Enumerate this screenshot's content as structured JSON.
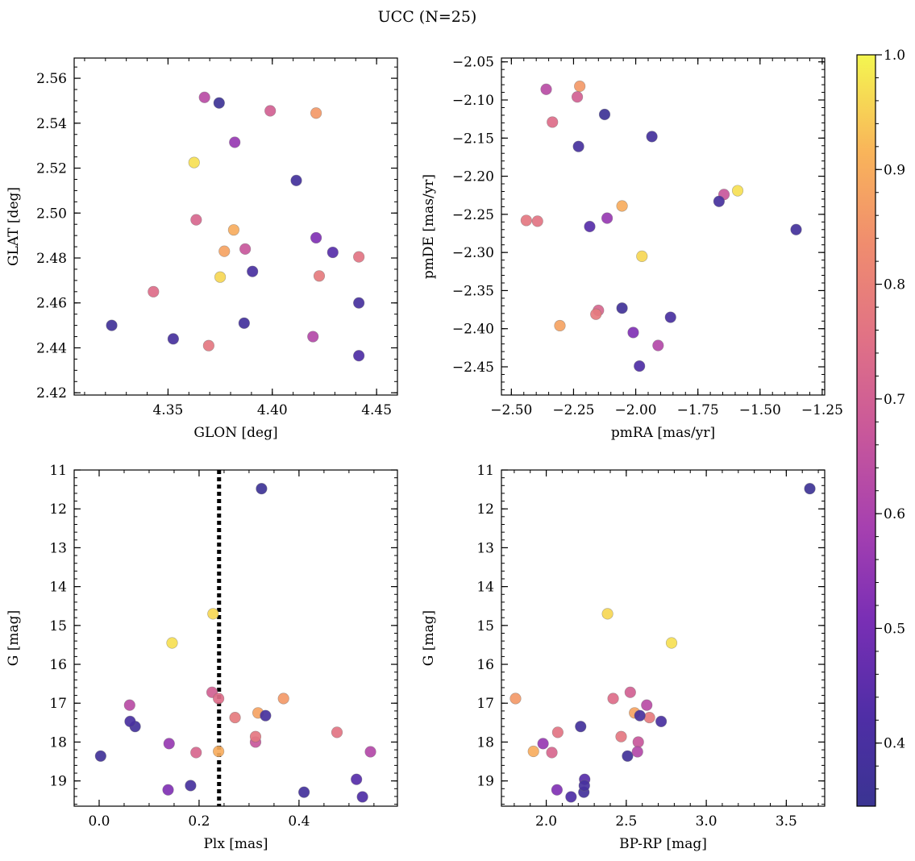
{
  "chart_data": {
    "type": "scatter",
    "title": "UCC (N=25)",
    "colormap": "plasma",
    "colorbar": {
      "range": [
        0.345,
        1.0
      ],
      "ticks": [
        0.4,
        0.5,
        0.6,
        0.7,
        0.8,
        0.9,
        1.0
      ],
      "tick_labels": [
        "0.4",
        "0.5",
        "0.6",
        "0.7",
        "0.8",
        "0.9",
        "1.0"
      ]
    },
    "stars": [
      {
        "glon": 4.3675,
        "glat": 2.5515,
        "pmra": -2.36,
        "pmde": -2.086,
        "plx": 0.061,
        "g": 17.05,
        "bprp": 2.628,
        "prob": 0.63
      },
      {
        "glon": 4.3745,
        "glat": 2.549,
        "pmra": -2.125,
        "pmde": -2.119,
        "plx": 0.325,
        "g": 11.48,
        "bprp": 3.647,
        "prob": 0.36
      },
      {
        "glon": 4.399,
        "glat": 2.5455,
        "pmra": -2.235,
        "pmde": -2.096,
        "plx": 0.226,
        "g": 16.72,
        "bprp": 2.525,
        "prob": 0.7
      },
      {
        "glon": 4.421,
        "glat": 2.5445,
        "pmra": -2.225,
        "pmde": -2.082,
        "plx": 0.369,
        "g": 16.88,
        "bprp": 1.808,
        "prob": 0.86
      },
      {
        "glon": 4.382,
        "glat": 2.5315,
        "pmra": -2.115,
        "pmde": -2.255,
        "plx": 0.14,
        "g": 18.04,
        "bprp": 1.98,
        "prob": 0.56
      },
      {
        "glon": 4.3625,
        "glat": 2.5225,
        "pmra": -1.59,
        "pmde": -2.219,
        "plx": 0.146,
        "g": 15.45,
        "bprp": 2.783,
        "prob": 0.97
      },
      {
        "glon": 4.4115,
        "glat": 2.5145,
        "pmra": -1.935,
        "pmde": -2.148,
        "plx": 0.072,
        "g": 17.6,
        "bprp": 2.215,
        "prob": 0.38
      },
      {
        "glon": 4.3635,
        "glat": 2.497,
        "pmra": -2.15,
        "pmde": -2.376,
        "plx": 0.194,
        "g": 18.27,
        "bprp": 2.035,
        "prob": 0.72
      },
      {
        "glon": 4.3815,
        "glat": 2.4925,
        "pmra": -2.055,
        "pmde": -2.239,
        "plx": 0.239,
        "g": 18.24,
        "bprp": 1.92,
        "prob": 0.9
      },
      {
        "glon": 4.421,
        "glat": 2.489,
        "pmra": -2.01,
        "pmde": -2.405,
        "plx": 0.138,
        "g": 19.23,
        "bprp": 2.067,
        "prob": 0.52
      },
      {
        "glon": 4.377,
        "glat": 2.483,
        "pmra": -2.305,
        "pmde": -2.396,
        "plx": 0.318,
        "g": 17.25,
        "bprp": 2.552,
        "prob": 0.88
      },
      {
        "glon": 4.387,
        "glat": 2.484,
        "pmra": -1.645,
        "pmde": -2.224,
        "plx": 0.313,
        "g": 18.0,
        "bprp": 2.575,
        "prob": 0.67
      },
      {
        "glon": 4.429,
        "glat": 2.4825,
        "pmra": -2.185,
        "pmde": -2.266,
        "plx": 0.515,
        "g": 18.96,
        "bprp": 2.24,
        "prob": 0.44
      },
      {
        "glon": 4.4415,
        "glat": 2.4805,
        "pmra": -2.395,
        "pmde": -2.259,
        "plx": 0.476,
        "g": 17.75,
        "bprp": 2.072,
        "prob": 0.76
      },
      {
        "glon": 4.4225,
        "glat": 2.472,
        "pmra": -2.16,
        "pmde": -2.381,
        "plx": 0.272,
        "g": 17.37,
        "bprp": 2.645,
        "prob": 0.78
      },
      {
        "glon": 4.375,
        "glat": 2.4715,
        "pmra": -1.975,
        "pmde": -2.305,
        "plx": 0.228,
        "g": 14.7,
        "bprp": 2.383,
        "prob": 0.96
      },
      {
        "glon": 4.3905,
        "glat": 2.474,
        "pmra": -1.86,
        "pmde": -2.385,
        "plx": 0.062,
        "g": 17.47,
        "bprp": 2.718,
        "prob": 0.4
      },
      {
        "glon": 4.343,
        "glat": 2.465,
        "pmra": -2.335,
        "pmde": -2.129,
        "plx": 0.239,
        "g": 16.88,
        "bprp": 2.418,
        "prob": 0.74
      },
      {
        "glon": 4.4415,
        "glat": 2.46,
        "pmra": -1.665,
        "pmde": -2.233,
        "plx": 0.333,
        "g": 17.32,
        "bprp": 2.585,
        "prob": 0.39
      },
      {
        "glon": 4.323,
        "glat": 2.45,
        "pmra": -2.055,
        "pmde": -2.373,
        "plx": 0.003,
        "g": 18.36,
        "bprp": 2.508,
        "prob": 0.37
      },
      {
        "glon": 4.3865,
        "glat": 2.451,
        "pmra": -1.355,
        "pmde": -2.27,
        "plx": 0.41,
        "g": 19.29,
        "bprp": 2.235,
        "prob": 0.38
      },
      {
        "glon": 4.4195,
        "glat": 2.445,
        "pmra": -1.91,
        "pmde": -2.422,
        "plx": 0.543,
        "g": 18.25,
        "bprp": 2.57,
        "prob": 0.62
      },
      {
        "glon": 4.3525,
        "glat": 2.444,
        "pmra": -2.23,
        "pmde": -2.161,
        "plx": 0.183,
        "g": 19.12,
        "bprp": 2.238,
        "prob": 0.39
      },
      {
        "glon": 4.3695,
        "glat": 2.441,
        "pmra": -2.44,
        "pmde": -2.258,
        "plx": 0.313,
        "g": 17.86,
        "bprp": 2.468,
        "prob": 0.77
      },
      {
        "glon": 4.4415,
        "glat": 2.4365,
        "pmra": -1.985,
        "pmde": -2.449,
        "plx": 0.527,
        "g": 19.41,
        "bprp": 2.155,
        "prob": 0.42
      }
    ],
    "panels": [
      {
        "id": "glon-glat",
        "x": "glon",
        "y": "glat",
        "xlabel": "GLON [deg]",
        "ylabel": "GLAT [deg]",
        "xlim": [
          4.305,
          4.46
        ],
        "ylim": [
          2.419,
          2.569
        ],
        "yinvert": false,
        "xticks": [
          4.35,
          4.4,
          4.45
        ],
        "xtick_labels": [
          "4.35",
          "4.40",
          "4.45"
        ],
        "yticks": [
          2.42,
          2.44,
          2.46,
          2.48,
          2.5,
          2.52,
          2.54,
          2.56
        ],
        "ytick_labels": [
          "2.42",
          "2.44",
          "2.46",
          "2.48",
          "2.50",
          "2.52",
          "2.54",
          "2.56"
        ]
      },
      {
        "id": "pmra-pmde",
        "x": "pmra",
        "y": "pmde",
        "xlabel": "pmRA [mas/yr]",
        "ylabel": "pmDE [mas/yr]",
        "xlim": [
          -2.54,
          -1.24
        ],
        "ylim": [
          -2.487,
          -2.045
        ],
        "yinvert": false,
        "xticks": [
          -2.5,
          -2.25,
          -2.0,
          -1.75,
          -1.5,
          -1.25
        ],
        "xtick_labels": [
          "−2.50",
          "−2.25",
          "−2.00",
          "−1.75",
          "−1.50",
          "−1.25"
        ],
        "yticks": [
          -2.45,
          -2.4,
          -2.35,
          -2.3,
          -2.25,
          -2.2,
          -2.15,
          -2.1,
          -2.05
        ],
        "ytick_labels": [
          "−2.45",
          "−2.40",
          "−2.35",
          "−2.30",
          "−2.25",
          "−2.20",
          "−2.15",
          "−2.10",
          "−2.05"
        ]
      },
      {
        "id": "plx-g",
        "x": "plx",
        "y": "g",
        "xlabel": "Plx [mas]",
        "ylabel": "G [mag]",
        "xlim": [
          -0.05,
          0.597
        ],
        "ylim": [
          11.0,
          19.65
        ],
        "yinvert": true,
        "vline": 0.24,
        "xticks": [
          0.0,
          0.2,
          0.4
        ],
        "xtick_labels": [
          "0.0",
          "0.2",
          "0.4"
        ],
        "yticks": [
          11,
          12,
          13,
          14,
          15,
          16,
          17,
          18,
          19
        ],
        "ytick_labels": [
          "11",
          "12",
          "13",
          "14",
          "15",
          "16",
          "17",
          "18",
          "19"
        ]
      },
      {
        "id": "bprp-g",
        "x": "bprp",
        "y": "g",
        "xlabel": "BP-RP [mag]",
        "ylabel": "G [mag]",
        "xlim": [
          1.72,
          3.74
        ],
        "ylim": [
          11.0,
          19.65
        ],
        "yinvert": true,
        "xticks": [
          2.0,
          2.5,
          3.0,
          3.5
        ],
        "xtick_labels": [
          "2.0",
          "2.5",
          "3.0",
          "3.5"
        ],
        "yticks": [
          11,
          12,
          13,
          14,
          15,
          16,
          17,
          18,
          19
        ],
        "ytick_labels": [
          "11",
          "12",
          "13",
          "14",
          "15",
          "16",
          "17",
          "18",
          "19"
        ]
      }
    ]
  }
}
